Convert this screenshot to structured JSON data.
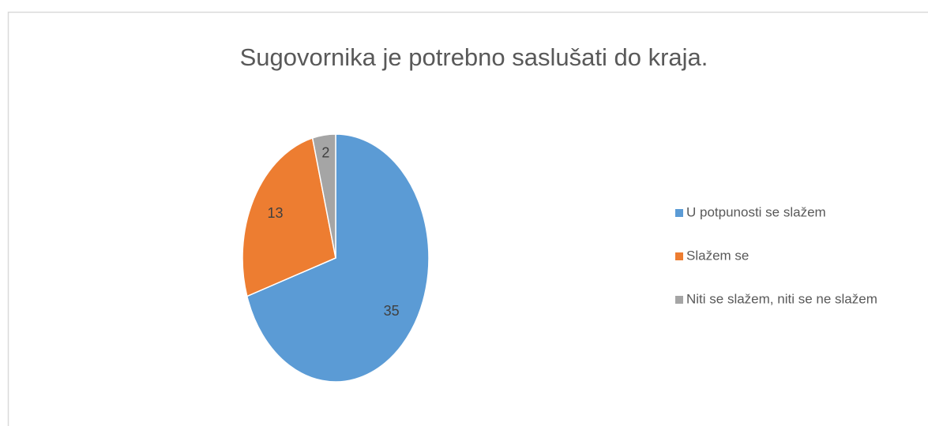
{
  "chart_data": {
    "type": "pie",
    "title": "Sugovornika je potrebno saslušati do kraja.",
    "categories": [
      "U potpunosti se slažem",
      "Slažem se",
      "Niti se slažem, niti se ne slažem"
    ],
    "values": [
      35,
      13,
      2
    ],
    "colors": [
      "#5b9bd5",
      "#ed7d31",
      "#a5a5a5"
    ],
    "legend": "right"
  }
}
